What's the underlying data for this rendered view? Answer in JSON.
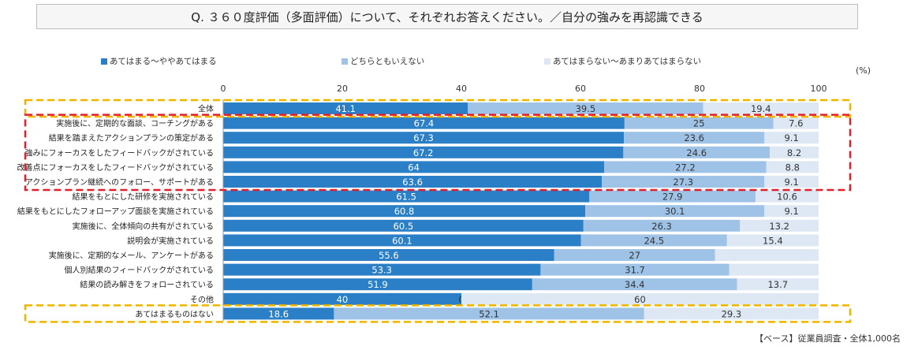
{
  "chart_data": {
    "type": "bar",
    "orientation": "horizontal",
    "stacked": true,
    "title": "Q. ３６０度評価（多面評価）について、それぞれお答えください。／自分の強みを再認識できる",
    "xlim": [
      0,
      100
    ],
    "x_ticks": [
      0,
      20,
      40,
      60,
      80,
      100
    ],
    "unit_label": "(%)",
    "legend": [
      "あてはまる～ややあてはまる",
      "どちらともいえない",
      "あてはまらない～あまりあてはまらない"
    ],
    "colors": [
      "#2a7fc6",
      "#9fc3e6",
      "#dde8f4"
    ],
    "categories": [
      "全体",
      "実施後に、定期的な面談、コーチングがある",
      "結果を踏まえたアクションプランの策定がある",
      "強みにフォーカスをしたフィードバックがされている",
      "改善点にフォーカスをしたフィードバックがされている",
      "アクションプラン継続へのフォロー、サポートがある",
      "結果をもとにした研修を実施されている",
      "結果をもとにしたフォローアップ面談を実施されている",
      "実施後に、全体傾向の共有がされている",
      "説明会が実施されている",
      "実施後に、定期的なメール、アンケートがある",
      "個人別結果のフィードバックがされている",
      "結果の読み解きをフォローされている",
      "その他",
      "あてはまるものはない"
    ],
    "series": [
      {
        "name": "あてはまる～ややあてはまる",
        "values": [
          41.1,
          67.4,
          67.3,
          67.2,
          64,
          63.6,
          61.5,
          60.8,
          60.5,
          60.1,
          55.6,
          53.3,
          51.9,
          40,
          18.6
        ]
      },
      {
        "name": "どちらともいえない",
        "values": [
          39.5,
          25,
          23.6,
          24.6,
          27.2,
          27.3,
          27.9,
          30.1,
          26.3,
          24.5,
          27,
          31.7,
          34.4,
          0,
          52.1
        ]
      },
      {
        "name": "あてはまらない～あまりあてはまらない",
        "values": [
          19.4,
          7.6,
          9.1,
          8.2,
          8.8,
          9.1,
          10.6,
          9.1,
          13.2,
          15.4,
          17.4,
          15,
          13.7,
          60,
          29.3
        ]
      }
    ],
    "series_labels": [
      [
        "41.1",
        "67.4",
        "67.3",
        "67.2",
        "64",
        "63.6",
        "61.5",
        "60.8",
        "60.5",
        "60.1",
        "55.6",
        "53.3",
        "51.9",
        "40",
        "18.6"
      ],
      [
        "39.5",
        "25",
        "23.6",
        "24.6",
        "27.2",
        "27.3",
        "27.9",
        "30.1",
        "26.3",
        "24.5",
        "27",
        "31.7",
        "34.4",
        "0",
        "52.1"
      ],
      [
        "19.4",
        "7.6",
        "9.1",
        "8.2",
        "8.8",
        "9.1",
        "10.6",
        "9.1",
        "13.2",
        "15.4",
        "",
        "",
        "13.7",
        "60",
        "29.3"
      ]
    ],
    "highlight_groups": [
      {
        "rows": [
          0,
          0
        ],
        "color": "#f0b400",
        "style": "dashed"
      },
      {
        "rows": [
          1,
          5
        ],
        "color": "#e0202a",
        "style": "dashed"
      },
      {
        "rows": [
          14,
          14
        ],
        "color": "#f0b400",
        "style": "dashed"
      }
    ],
    "note": "【ベース】従業員調査・全体1,000名"
  }
}
